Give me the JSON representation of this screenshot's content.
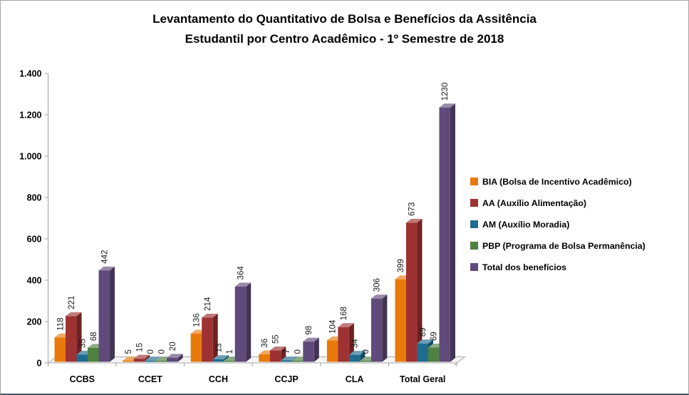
{
  "frame": {
    "border_color": "#A6A6A6",
    "bottom_border_color": "#44546A"
  },
  "chart_data": {
    "type": "bar",
    "style": "3d-clustered-column",
    "title": "Levantamento do Quantitativo de Bolsa e Benefícios da Assitência Estudantil  por Centro Acadêmico - 1º Semestre de 2018",
    "title_lines": [
      "Levantamento do Quantitativo de Bolsa e Benefícios da Assitência",
      "Estudantil  por Centro Acadêmico - 1º Semestre de 2018"
    ],
    "categories": [
      "CCBS",
      "CCET",
      "CCH",
      "CCJP",
      "CLA",
      "Total Geral"
    ],
    "series": [
      {
        "name": "BIA (Bolsa de Incentivo Acadêmico)",
        "color": "#E8790A",
        "values": [
          118,
          5,
          136,
          36,
          104,
          399
        ]
      },
      {
        "name": "AA (Auxílio Alimentação)",
        "color": "#9E3132",
        "values": [
          221,
          15,
          214,
          55,
          168,
          673
        ]
      },
      {
        "name": "AM (Auxílio Moradia)",
        "color": "#1F6C8F",
        "values": [
          35,
          0,
          13,
          7,
          34,
          89
        ]
      },
      {
        "name": "PBP (Programa de Bolsa Permanência)",
        "color": "#4F8141",
        "values": [
          68,
          0,
          1,
          0,
          0,
          69
        ]
      },
      {
        "name": "Total dos benefícios",
        "color": "#604A7B",
        "values": [
          442,
          20,
          364,
          98,
          306,
          1230
        ]
      }
    ],
    "y_axis": {
      "min": 0,
      "max": 1400,
      "tick_step": 200,
      "tick_labels": [
        "0",
        "200",
        "400",
        "600",
        "800",
        "1.000",
        "1.200",
        "1.400"
      ]
    },
    "value_labels": "rotated-vertical",
    "legend_position": "right",
    "grid": false,
    "axis_color": "#A3A3A3",
    "floor_fill": "#F5F5F5",
    "floor_stroke": "#ABABAB"
  }
}
